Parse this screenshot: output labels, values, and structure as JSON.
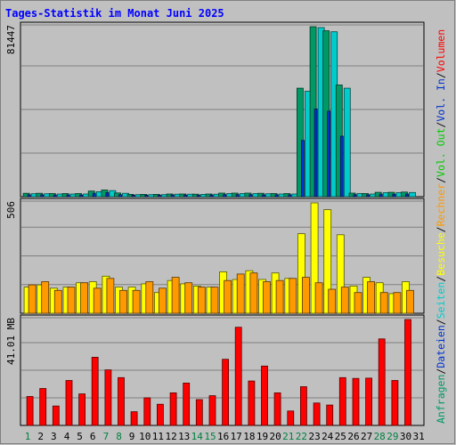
{
  "chart_data": {
    "type": "bar",
    "title": "Tages-Statistik im Monat Juni 2025",
    "days": [
      "1",
      "2",
      "3",
      "4",
      "5",
      "6",
      "7",
      "8",
      "9",
      "10",
      "11",
      "12",
      "13",
      "14",
      "15",
      "16",
      "17",
      "18",
      "19",
      "20",
      "21",
      "22",
      "23",
      "24",
      "25",
      "26",
      "27",
      "28",
      "29",
      "30",
      "31"
    ],
    "weekend_days": [
      "1",
      "7",
      "8",
      "14",
      "15",
      "21",
      "22",
      "28",
      "29"
    ],
    "panels": [
      {
        "id": "hits",
        "max_label": "81447",
        "max": 81447,
        "series": [
          {
            "name": "Anfragen",
            "color": "#009966",
            "values": [
              1600,
              1600,
              1500,
              1500,
              1500,
              2700,
              3200,
              1800,
              1100,
              1100,
              1100,
              1300,
              1300,
              1200,
              1300,
              1700,
              1700,
              1700,
              1600,
              1500,
              1500,
              52000,
              81447,
              79500,
              53500,
              1700,
              1500,
              2100,
              2100,
              2200,
              0
            ]
          },
          {
            "name": "Dateien",
            "color": "#0033cc",
            "values": [
              900,
              900,
              800,
              800,
              800,
              1600,
              1900,
              1000,
              700,
              700,
              700,
              800,
              800,
              700,
              800,
              1000,
              1000,
              1000,
              900,
              900,
              900,
              27000,
              42000,
              41000,
              29000,
              1000,
              900,
              1200,
              1200,
              1300,
              0
            ]
          },
          {
            "name": "Seiten",
            "color": "#00cccc",
            "values": [
              1400,
              1400,
              1300,
              1300,
              1300,
              2400,
              2900,
              1600,
              1000,
              1000,
              1000,
              1200,
              1200,
              1100,
              1200,
              1500,
              1500,
              1500,
              1400,
              1300,
              1300,
              50500,
              81000,
              79000,
              52000,
              1500,
              1300,
              1900,
              1900,
              2000,
              0
            ]
          }
        ]
      },
      {
        "id": "visits",
        "max_label": "506",
        "max": 506,
        "series": [
          {
            "name": "Besuche",
            "color": "#ffff00",
            "values": [
              120,
              130,
              115,
              120,
              140,
              145,
              170,
              120,
              120,
              135,
              95,
              150,
              135,
              125,
              120,
              190,
              155,
              195,
              155,
              185,
              160,
              365,
              506,
              475,
              360,
              125,
              165,
              140,
              90,
              145,
              0
            ]
          },
          {
            "name": "Rechner",
            "color": "#ff9900",
            "values": [
              130,
              145,
              105,
              120,
              140,
              115,
              160,
              105,
              105,
              145,
              115,
              165,
              140,
              120,
              120,
              150,
              180,
              185,
              145,
              150,
              160,
              165,
              140,
              110,
              120,
              95,
              145,
              95,
              95,
              105,
              0
            ]
          }
        ]
      },
      {
        "id": "volume",
        "max_label": "41.01 MB",
        "max": 41.01,
        "series": [
          {
            "name": "Volumen",
            "color": "#ff0000",
            "values": [
              11.2,
              14.3,
              7.5,
              17.4,
              12.2,
              26.4,
              21.5,
              18.5,
              5.3,
              10.7,
              8.2,
              12.6,
              16.4,
              10.0,
              11.5,
              25.6,
              38.0,
              17.2,
              23.0,
              12.6,
              5.6,
              15.0,
              8.7,
              7.9,
              18.5,
              18.2,
              18.3,
              33.5,
              17.4,
              41.01,
              0
            ]
          }
        ]
      }
    ],
    "right_labels": [
      {
        "text": "Anfragen",
        "color": "#009966"
      },
      {
        "text": "Dateien",
        "color": "#0033cc"
      },
      {
        "text": "Seiten",
        "color": "#00cccc"
      },
      {
        "text": "Besuche",
        "color": "#ffff00"
      },
      {
        "text": "Rechner",
        "color": "#ff9900"
      },
      {
        "text": "Vol. Out",
        "color": "#00cc00"
      },
      {
        "text": "Vol. In",
        "color": "#0033cc"
      },
      {
        "text": "Volumen",
        "color": "#ff0000"
      }
    ],
    "colors": {
      "background": "#c0c0c0",
      "title": "#0000ff",
      "weekend": "#008040",
      "weekday": "#000000"
    }
  }
}
